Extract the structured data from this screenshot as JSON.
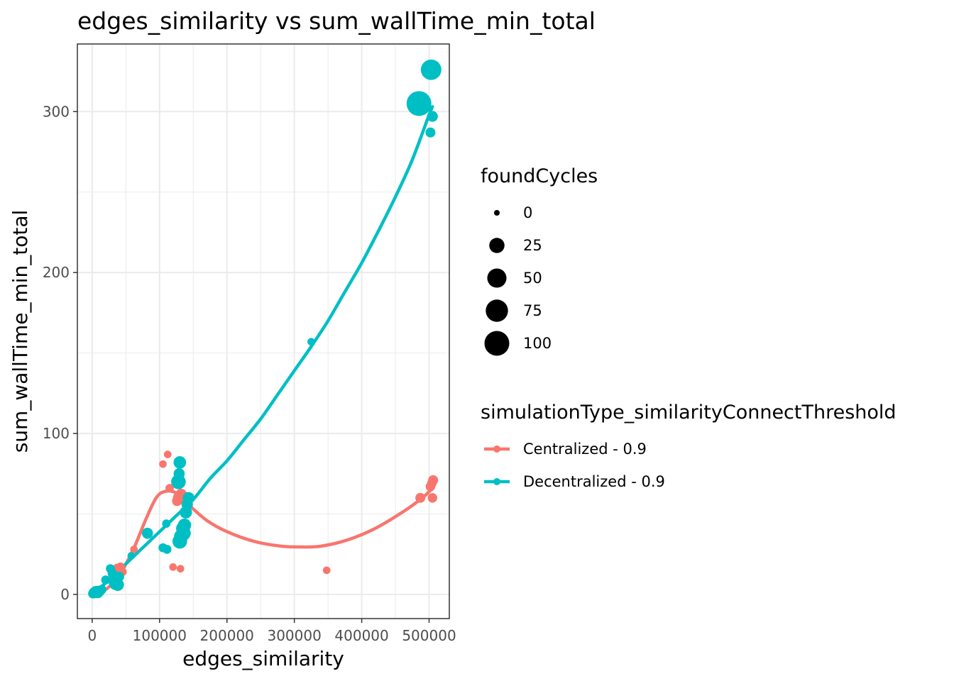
{
  "chart_data": {
    "type": "scatter",
    "title": "edges_similarity  vs  sum_wallTime_min_total",
    "xlabel": "edges_similarity",
    "ylabel": "sum_wallTime_min_total",
    "xlim": [
      -22000,
      530000
    ],
    "ylim": [
      -15,
      342
    ],
    "x_ticks": [
      0,
      100000,
      200000,
      300000,
      400000,
      500000
    ],
    "x_tick_labels": [
      "0",
      "100000",
      "200000",
      "300000",
      "400000",
      "500000"
    ],
    "y_ticks": [
      0,
      100,
      200,
      300
    ],
    "y_tick_labels": [
      "0",
      "100",
      "200",
      "300"
    ],
    "grid": true,
    "size_legend": {
      "title": "foundCycles",
      "values": [
        0,
        25,
        50,
        75,
        100
      ],
      "labels": [
        "0",
        "25",
        "50",
        "75",
        "100"
      ]
    },
    "color_legend": {
      "title": "simulationType_similarityConnectThreshold",
      "placement": "right"
    },
    "series": [
      {
        "name": "Centralized - 0.9",
        "color": "#F8766D",
        "points": [
          {
            "x": 1000,
            "y": 0.5,
            "size": 1
          },
          {
            "x": 5000,
            "y": 1,
            "size": 2
          },
          {
            "x": 10000,
            "y": 2,
            "size": 4
          },
          {
            "x": 38000,
            "y": 16,
            "size": 6
          },
          {
            "x": 42000,
            "y": 17,
            "size": 3
          },
          {
            "x": 45000,
            "y": 14,
            "size": 2
          },
          {
            "x": 62000,
            "y": 28,
            "size": 1
          },
          {
            "x": 105000,
            "y": 81,
            "size": 1
          },
          {
            "x": 112000,
            "y": 87,
            "size": 1
          },
          {
            "x": 115000,
            "y": 66,
            "size": 2
          },
          {
            "x": 120000,
            "y": 17,
            "size": 1
          },
          {
            "x": 126000,
            "y": 58,
            "size": 5
          },
          {
            "x": 128000,
            "y": 60,
            "size": 8
          },
          {
            "x": 132000,
            "y": 62,
            "size": 10
          },
          {
            "x": 131000,
            "y": 16,
            "size": 1
          },
          {
            "x": 136000,
            "y": 59,
            "size": 6
          },
          {
            "x": 142000,
            "y": 57,
            "size": 3
          },
          {
            "x": 348000,
            "y": 15,
            "size": 1
          },
          {
            "x": 487000,
            "y": 60,
            "size": 5
          },
          {
            "x": 502000,
            "y": 67,
            "size": 4
          },
          {
            "x": 504000,
            "y": 69,
            "size": 4
          },
          {
            "x": 505000,
            "y": 60,
            "size": 4
          },
          {
            "x": 506000,
            "y": 71,
            "size": 5
          }
        ],
        "smooth": [
          {
            "x": 0,
            "y": 0
          },
          {
            "x": 20000,
            "y": 3
          },
          {
            "x": 40000,
            "y": 12
          },
          {
            "x": 60000,
            "y": 27
          },
          {
            "x": 80000,
            "y": 47
          },
          {
            "x": 95000,
            "y": 60
          },
          {
            "x": 108000,
            "y": 64
          },
          {
            "x": 125000,
            "y": 63
          },
          {
            "x": 145000,
            "y": 55
          },
          {
            "x": 170000,
            "y": 46
          },
          {
            "x": 200000,
            "y": 39
          },
          {
            "x": 240000,
            "y": 33
          },
          {
            "x": 280000,
            "y": 30
          },
          {
            "x": 310000,
            "y": 29.5
          },
          {
            "x": 340000,
            "y": 30
          },
          {
            "x": 380000,
            "y": 34
          },
          {
            "x": 420000,
            "y": 41
          },
          {
            "x": 460000,
            "y": 51
          },
          {
            "x": 490000,
            "y": 60
          },
          {
            "x": 505000,
            "y": 66
          }
        ]
      },
      {
        "name": "Decentralized - 0.9",
        "color": "#00BFC4",
        "points": [
          {
            "x": 1000,
            "y": 0.5,
            "size": 4
          },
          {
            "x": 3000,
            "y": 1,
            "size": 8
          },
          {
            "x": 5000,
            "y": 2,
            "size": 6
          },
          {
            "x": 8000,
            "y": 1.5,
            "size": 12
          },
          {
            "x": 11000,
            "y": 2,
            "size": 6
          },
          {
            "x": 14000,
            "y": 3,
            "size": 4
          },
          {
            "x": 20000,
            "y": 9,
            "size": 3
          },
          {
            "x": 27000,
            "y": 16,
            "size": 3
          },
          {
            "x": 30000,
            "y": 13,
            "size": 4
          },
          {
            "x": 33000,
            "y": 10,
            "size": 6
          },
          {
            "x": 35000,
            "y": 7,
            "size": 18
          },
          {
            "x": 38000,
            "y": 6,
            "size": 12
          },
          {
            "x": 40000,
            "y": 11,
            "size": 5
          },
          {
            "x": 58000,
            "y": 24,
            "size": 1
          },
          {
            "x": 82000,
            "y": 38,
            "size": 8
          },
          {
            "x": 105000,
            "y": 29,
            "size": 3
          },
          {
            "x": 110000,
            "y": 44,
            "size": 2
          },
          {
            "x": 111000,
            "y": 28,
            "size": 3
          },
          {
            "x": 128000,
            "y": 70,
            "size": 22
          },
          {
            "x": 129000,
            "y": 75,
            "size": 8
          },
          {
            "x": 130000,
            "y": 82,
            "size": 13
          },
          {
            "x": 130000,
            "y": 33,
            "size": 22
          },
          {
            "x": 132000,
            "y": 36,
            "size": 20
          },
          {
            "x": 134000,
            "y": 41,
            "size": 14
          },
          {
            "x": 136000,
            "y": 38,
            "size": 18
          },
          {
            "x": 137000,
            "y": 43,
            "size": 16
          },
          {
            "x": 139000,
            "y": 51,
            "size": 12
          },
          {
            "x": 141000,
            "y": 56,
            "size": 9
          },
          {
            "x": 143000,
            "y": 60,
            "size": 10
          },
          {
            "x": 325000,
            "y": 157,
            "size": 1
          },
          {
            "x": 485000,
            "y": 305,
            "size": 100
          },
          {
            "x": 502000,
            "y": 287,
            "size": 5
          },
          {
            "x": 503000,
            "y": 326,
            "size": 60
          },
          {
            "x": 505000,
            "y": 297,
            "size": 7
          }
        ],
        "smooth": [
          {
            "x": 0,
            "y": 0
          },
          {
            "x": 25000,
            "y": 9
          },
          {
            "x": 50000,
            "y": 19
          },
          {
            "x": 75000,
            "y": 29
          },
          {
            "x": 100000,
            "y": 39
          },
          {
            "x": 125000,
            "y": 49
          },
          {
            "x": 150000,
            "y": 59
          },
          {
            "x": 175000,
            "y": 72
          },
          {
            "x": 200000,
            "y": 83
          },
          {
            "x": 225000,
            "y": 96
          },
          {
            "x": 250000,
            "y": 109
          },
          {
            "x": 275000,
            "y": 124
          },
          {
            "x": 300000,
            "y": 139
          },
          {
            "x": 325000,
            "y": 154
          },
          {
            "x": 350000,
            "y": 170
          },
          {
            "x": 375000,
            "y": 188
          },
          {
            "x": 400000,
            "y": 206
          },
          {
            "x": 425000,
            "y": 226
          },
          {
            "x": 450000,
            "y": 247
          },
          {
            "x": 475000,
            "y": 270
          },
          {
            "x": 500000,
            "y": 298
          },
          {
            "x": 505000,
            "y": 303
          }
        ]
      }
    ]
  }
}
